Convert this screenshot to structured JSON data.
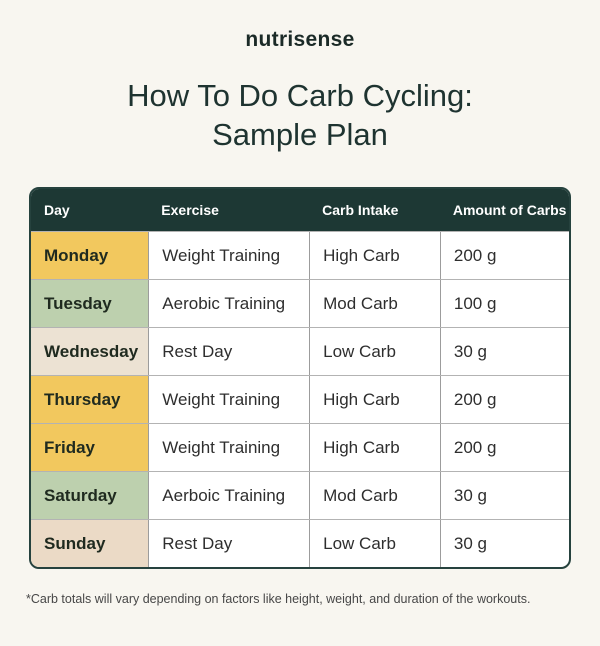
{
  "logo": {
    "text": "nutrisense"
  },
  "title": {
    "line1": "How To Do Carb Cycling:",
    "line2": "Sample Plan"
  },
  "colors": {
    "page_background": "#f8f6f0",
    "header_background": "#1d3834",
    "header_text": "#ffffff",
    "outer_border": "#26423e",
    "weight_training_yellow": "#f2c85e",
    "aerobic_green": "#bdd0ae",
    "rest_cream": "#ece2d3",
    "rest_tan": "#ebdac6"
  },
  "table": {
    "header": {
      "day": "Day",
      "exercise": "Exercise",
      "carb_intake": "Carb Intake",
      "amount": "Amount of Carbs"
    },
    "rows": [
      {
        "day": "Monday",
        "day_color": "#f2c85e",
        "exercise": "Weight Training",
        "carb_intake": "High Carb",
        "amount": "200 g"
      },
      {
        "day": "Tuesday",
        "day_color": "#bdd0ae",
        "exercise": "Aerobic Training",
        "carb_intake": "Mod Carb",
        "amount": "100 g"
      },
      {
        "day": "Wednesday",
        "day_color": "#ece2d3",
        "exercise": "Rest Day",
        "carb_intake": "Low Carb",
        "amount": "30 g"
      },
      {
        "day": "Thursday",
        "day_color": "#f2c85e",
        "exercise": "Weight Training",
        "carb_intake": "High Carb",
        "amount": "200 g"
      },
      {
        "day": "Friday",
        "day_color": "#f2c85e",
        "exercise": "Weight Training",
        "carb_intake": "High Carb",
        "amount": "200 g"
      },
      {
        "day": "Saturday",
        "day_color": "#bdd0ae",
        "exercise": "Aerboic Training",
        "carb_intake": "Mod Carb",
        "amount": "30 g"
      },
      {
        "day": "Sunday",
        "day_color": "#ebdac6",
        "exercise": "Rest Day",
        "carb_intake": "Low Carb",
        "amount": "30 g"
      }
    ]
  },
  "footnote": {
    "text": "*Carb totals will vary depending on factors like height, weight, and duration of the workouts."
  },
  "chart_data": {
    "type": "table",
    "title": "How To Do Carb Cycling: Sample Plan",
    "columns": [
      "Day",
      "Exercise",
      "Carb Intake",
      "Amount of Carbs"
    ],
    "rows": [
      [
        "Monday",
        "Weight Training",
        "High Carb",
        "200 g"
      ],
      [
        "Tuesday",
        "Aerobic Training",
        "Mod Carb",
        "100 g"
      ],
      [
        "Wednesday",
        "Rest Day",
        "Low Carb",
        "30 g"
      ],
      [
        "Thursday",
        "Weight Training",
        "High Carb",
        "200 g"
      ],
      [
        "Friday",
        "Weight Training",
        "High Carb",
        "200 g"
      ],
      [
        "Saturday",
        "Aerboic Training",
        "Mod Carb",
        "30 g"
      ],
      [
        "Sunday",
        "Rest Day",
        "Low Carb",
        "30 g"
      ]
    ]
  }
}
